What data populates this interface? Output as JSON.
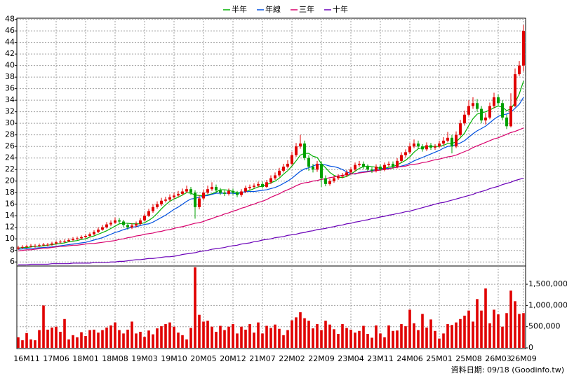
{
  "chart_data": {
    "type": "candlestick",
    "legend": "top",
    "grid": true,
    "up_color": "#e00000",
    "down_color": "#00a000",
    "categories": [
      null,
      null,
      "16M11",
      null,
      null,
      null,
      null,
      null,
      null,
      "17M06",
      null,
      null,
      null,
      null,
      null,
      null,
      "18M01",
      null,
      null,
      null,
      null,
      null,
      null,
      "18M08",
      null,
      null,
      null,
      null,
      null,
      null,
      "19M03",
      null,
      null,
      null,
      null,
      null,
      null,
      "19M10",
      null,
      null,
      null,
      null,
      null,
      null,
      "20M05",
      null,
      null,
      null,
      null,
      null,
      null,
      "20M12",
      null,
      null,
      null,
      null,
      null,
      null,
      "21M07",
      null,
      null,
      null,
      null,
      null,
      null,
      "22M02",
      null,
      null,
      null,
      null,
      null,
      null,
      "22M09",
      null,
      null,
      null,
      null,
      null,
      null,
      "23M04",
      null,
      null,
      null,
      null,
      null,
      null,
      "23M11",
      null,
      null,
      null,
      null,
      null,
      null,
      "24M06",
      null,
      null,
      null,
      null,
      null,
      null,
      "25M01",
      null,
      null,
      null,
      null,
      null,
      null,
      "25M08",
      null,
      null,
      null,
      null,
      null,
      null,
      "26M03",
      null,
      null,
      null,
      null,
      null,
      "26M09"
    ],
    "open": [
      8.3,
      8.5,
      8.6,
      8.7,
      8.8,
      8.8,
      8.9,
      9.0,
      9.0,
      9.2,
      9.4,
      9.5,
      9.6,
      9.8,
      10.0,
      10.1,
      10.3,
      10.5,
      10.8,
      11.2,
      11.6,
      12.0,
      12.5,
      12.8,
      13.2,
      13.0,
      12.4,
      12.0,
      12.3,
      12.6,
      13.2,
      14.0,
      14.8,
      15.5,
      16.0,
      16.6,
      16.8,
      17.2,
      17.5,
      17.8,
      18.2,
      18.6,
      18.0,
      15.5,
      17.0,
      18.0,
      18.6,
      19.0,
      18.4,
      18.0,
      17.8,
      18.3,
      18.0,
      17.6,
      18.2,
      18.8,
      19.0,
      19.2,
      19.5,
      19.0,
      19.8,
      20.5,
      21.0,
      21.8,
      22.5,
      23.0,
      24.5,
      26.0,
      26.5,
      24.0,
      22.5,
      22.0,
      23.0,
      20.5,
      19.5,
      20.0,
      20.5,
      20.8,
      21.0,
      21.5,
      22.0,
      22.8,
      23.0,
      22.5,
      22.0,
      21.8,
      22.5,
      22.0,
      22.8,
      23.0,
      22.5,
      23.5,
      24.5,
      25.0,
      26.0,
      26.5,
      26.0,
      25.5,
      26.2,
      25.8,
      26.0,
      26.5,
      27.0,
      27.5,
      26.0,
      28.0,
      30.0,
      31.5,
      33.0,
      33.5,
      32.5,
      30.5,
      31.0,
      33.0,
      34.5,
      33.5,
      31.0,
      29.5,
      33.0,
      38.5,
      40.0
    ],
    "high": [
      8.8,
      8.9,
      9.0,
      9.1,
      9.1,
      9.2,
      9.3,
      9.3,
      9.5,
      9.7,
      9.8,
      9.9,
      10.1,
      10.3,
      10.4,
      10.6,
      10.8,
      11.1,
      11.5,
      12.0,
      12.4,
      12.9,
      13.2,
      13.7,
      13.6,
      13.3,
      12.7,
      12.7,
      13.0,
      13.6,
      14.4,
      15.2,
      16.0,
      16.5,
      17.1,
      17.3,
      17.7,
      18.0,
      18.3,
      18.7,
      19.2,
      19.0,
      18.4,
      17.5,
      18.5,
      19.2,
      19.8,
      19.4,
      18.8,
      18.4,
      18.7,
      18.7,
      18.3,
      18.6,
      19.2,
      19.4,
      19.6,
      19.9,
      19.9,
      20.2,
      21.0,
      21.5,
      22.3,
      23.0,
      23.6,
      25.1,
      26.6,
      28.0,
      27.0,
      24.5,
      23.0,
      23.5,
      23.4,
      21.0,
      20.4,
      20.9,
      21.2,
      21.4,
      21.9,
      22.4,
      23.2,
      23.5,
      23.4,
      22.9,
      22.4,
      22.9,
      22.9,
      23.2,
      23.4,
      23.4,
      24.0,
      25.0,
      25.5,
      26.6,
      27.2,
      27.0,
      26.4,
      26.7,
      26.6,
      26.4,
      27.0,
      27.6,
      28.5,
      28.0,
      28.6,
      30.6,
      32.2,
      34.0,
      34.5,
      34.2,
      33.0,
      31.8,
      33.6,
      35.3,
      35.0,
      34.0,
      31.5,
      35.2,
      39.5,
      40.8,
      47.0
    ],
    "low": [
      8.1,
      8.3,
      8.4,
      8.5,
      8.5,
      8.6,
      8.7,
      8.7,
      8.8,
      9.0,
      9.2,
      9.3,
      9.4,
      9.6,
      9.8,
      9.9,
      10.1,
      10.3,
      10.6,
      11.0,
      11.4,
      11.8,
      12.2,
      12.6,
      12.7,
      12.0,
      11.6,
      11.7,
      12.0,
      12.4,
      13.0,
      13.8,
      14.5,
      15.2,
      15.7,
      16.3,
      16.5,
      16.9,
      17.2,
      17.5,
      17.9,
      17.6,
      13.5,
      15.1,
      16.7,
      17.7,
      18.3,
      18.0,
      17.6,
      17.4,
      17.5,
      17.6,
      17.2,
      17.3,
      17.9,
      18.5,
      18.7,
      18.9,
      18.7,
      18.8,
      19.5,
      20.2,
      20.7,
      21.5,
      22.2,
      22.7,
      24.2,
      25.6,
      23.6,
      21.8,
      21.5,
      21.6,
      19.0,
      19.1,
      19.2,
      19.7,
      20.2,
      20.5,
      20.7,
      21.2,
      21.7,
      22.5,
      22.1,
      21.7,
      21.4,
      21.5,
      21.7,
      21.7,
      22.5,
      22.1,
      22.2,
      23.2,
      24.1,
      24.7,
      25.7,
      25.6,
      25.1,
      25.2,
      25.4,
      25.4,
      25.7,
      26.2,
      26.7,
      24.8,
      25.7,
      27.7,
      29.6,
      31.2,
      32.5,
      32.0,
      30.0,
      29.8,
      30.7,
      32.6,
      33.0,
      30.5,
      29.0,
      29.3,
      32.8,
      38.2,
      39.0
    ],
    "close": [
      8.5,
      8.6,
      8.7,
      8.8,
      8.8,
      8.9,
      9.0,
      9.0,
      9.2,
      9.4,
      9.5,
      9.6,
      9.8,
      10.0,
      10.1,
      10.3,
      10.5,
      10.8,
      11.2,
      11.6,
      12.0,
      12.5,
      12.8,
      13.2,
      13.0,
      12.4,
      12.0,
      12.3,
      12.6,
      13.2,
      14.0,
      14.8,
      15.5,
      16.0,
      16.6,
      16.8,
      17.2,
      17.5,
      17.8,
      18.2,
      18.6,
      18.0,
      15.5,
      17.0,
      18.0,
      18.6,
      19.0,
      18.4,
      18.0,
      17.8,
      18.3,
      18.0,
      17.6,
      18.2,
      18.8,
      19.0,
      19.2,
      19.5,
      19.0,
      19.8,
      20.5,
      21.0,
      21.8,
      22.5,
      23.0,
      24.5,
      26.0,
      26.5,
      24.0,
      22.5,
      22.0,
      23.0,
      20.5,
      19.5,
      20.0,
      20.5,
      20.8,
      21.0,
      21.5,
      22.0,
      22.8,
      23.0,
      22.5,
      22.0,
      21.8,
      22.5,
      22.0,
      22.8,
      23.0,
      22.5,
      23.5,
      24.5,
      25.0,
      26.0,
      26.5,
      26.0,
      25.5,
      26.2,
      25.8,
      26.0,
      26.5,
      27.0,
      27.5,
      26.0,
      28.0,
      30.0,
      31.5,
      33.0,
      33.5,
      32.5,
      30.5,
      31.0,
      33.0,
      34.5,
      33.5,
      31.0,
      29.5,
      33.0,
      38.5,
      40.0,
      46.0
    ],
    "ylim": [
      5.3,
      48.2
    ],
    "yticks": [
      6,
      8,
      10,
      12,
      14,
      16,
      18,
      20,
      22,
      24,
      26,
      28,
      30,
      32,
      34,
      36,
      38,
      40,
      42,
      44,
      46,
      48
    ],
    "series": [
      {
        "name": "半年",
        "color": "#00b000",
        "values": [
          8.4,
          8.5,
          8.5,
          8.6,
          8.7,
          8.7,
          8.8,
          8.9,
          9.0,
          9.1,
          9.2,
          9.3,
          9.5,
          9.6,
          9.7,
          9.9,
          10.0,
          10.3,
          10.5,
          10.8,
          11.1,
          11.4,
          11.8,
          12.2,
          12.6,
          12.7,
          12.7,
          12.6,
          12.6,
          12.6,
          12.8,
          13.2,
          13.7,
          14.4,
          15.2,
          15.9,
          16.5,
          16.9,
          17.2,
          17.6,
          18.0,
          17.9,
          17.6,
          17.5,
          17.5,
          17.6,
          17.8,
          18.1,
          18.5,
          18.5,
          18.4,
          18.2,
          18.0,
          18.0,
          18.2,
          18.4,
          18.7,
          19.0,
          19.1,
          19.4,
          19.7,
          20.0,
          20.5,
          21.2,
          21.8,
          22.6,
          23.5,
          24.5,
          24.8,
          24.8,
          24.3,
          24.1,
          23.0,
          22.3,
          21.5,
          21.0,
          20.7,
          20.6,
          20.8,
          21.2,
          21.7,
          22.2,
          22.5,
          22.6,
          22.5,
          22.4,
          22.2,
          22.2,
          22.4,
          22.5,
          22.8,
          23.2,
          23.6,
          24.2,
          25.0,
          25.6,
          25.8,
          26.0,
          26.0,
          26.0,
          26.0,
          26.2,
          26.5,
          26.5,
          26.8,
          27.5,
          28.3,
          29.6,
          30.8,
          31.6,
          31.8,
          32.0,
          32.3,
          32.7,
          33.0,
          32.8,
          32.2,
          32.5,
          33.6,
          35.1,
          37.3
        ]
      },
      {
        "name": "年線",
        "color": "#0050e0",
        "values": [
          8.2,
          8.25,
          8.3,
          8.35,
          8.4,
          8.45,
          8.5,
          8.55,
          8.6,
          8.7,
          8.8,
          8.9,
          9.0,
          9.1,
          9.2,
          9.3,
          9.4,
          9.6,
          9.8,
          10.0,
          10.2,
          10.5,
          10.8,
          11.1,
          11.3,
          11.6,
          11.8,
          12.0,
          12.1,
          12.3,
          12.5,
          12.6,
          12.9,
          13.3,
          13.7,
          14.1,
          14.6,
          15.1,
          15.5,
          16.0,
          16.5,
          16.9,
          17.0,
          17.2,
          17.4,
          17.5,
          17.7,
          17.9,
          17.9,
          17.9,
          17.9,
          17.9,
          17.8,
          18.0,
          18.2,
          18.2,
          18.2,
          18.3,
          18.4,
          18.5,
          18.7,
          18.9,
          19.2,
          19.6,
          20.0,
          20.5,
          21.1,
          21.7,
          22.1,
          22.3,
          22.6,
          22.9,
          22.9,
          22.8,
          22.6,
          22.5,
          22.3,
          22.0,
          21.6,
          21.3,
          21.2,
          21.5,
          21.6,
          21.7,
          21.8,
          22.0,
          22.1,
          22.2,
          22.2,
          22.3,
          22.4,
          22.6,
          22.8,
          23.1,
          23.5,
          23.8,
          24.1,
          24.4,
          24.7,
          25.0,
          25.3,
          25.7,
          26.0,
          26.1,
          26.3,
          26.6,
          27.0,
          27.6,
          28.2,
          28.7,
          29.1,
          29.5,
          30.1,
          30.7,
          31.2,
          31.5,
          31.6,
          31.9,
          32.6,
          33.3,
          34.5
        ]
      },
      {
        "name": "三年",
        "color": "#d8006c",
        "values": [
          7.9,
          8.0,
          8.1,
          8.1,
          8.2,
          8.3,
          8.4,
          8.4,
          8.5,
          8.6,
          8.7,
          8.7,
          8.8,
          8.9,
          8.9,
          9.0,
          9.1,
          9.2,
          9.2,
          9.3,
          9.4,
          9.5,
          9.6,
          9.7,
          9.9,
          10.0,
          10.2,
          10.3,
          10.5,
          10.6,
          10.8,
          10.9,
          11.0,
          11.2,
          11.3,
          11.5,
          11.6,
          11.8,
          12.0,
          12.1,
          12.3,
          12.5,
          12.7,
          12.8,
          13.0,
          13.3,
          13.5,
          13.8,
          14.0,
          14.3,
          14.5,
          14.8,
          15.0,
          15.3,
          15.5,
          15.8,
          16.0,
          16.3,
          16.5,
          16.8,
          17.2,
          17.5,
          17.8,
          18.2,
          18.5,
          18.8,
          19.2,
          19.5,
          19.7,
          19.8,
          20.0,
          20.1,
          20.3,
          20.4,
          20.6,
          20.7,
          20.9,
          21.0,
          21.1,
          21.2,
          21.3,
          21.4,
          21.5,
          21.6,
          21.7,
          21.8,
          21.9,
          22.0,
          22.1,
          22.3,
          22.4,
          22.5,
          22.6,
          22.8,
          22.9,
          23.0,
          23.2,
          23.3,
          23.5,
          23.7,
          23.8,
          24.0,
          24.2,
          24.3,
          24.5,
          24.8,
          25.1,
          25.4,
          25.8,
          26.1,
          26.4,
          26.7,
          27.0,
          27.3,
          27.5,
          27.8,
          28.1,
          28.4,
          28.6,
          28.9,
          29.2
        ]
      },
      {
        "name": "十年",
        "color": "#6a00b8",
        "values": [
          5.5,
          5.5,
          5.5,
          5.6,
          5.6,
          5.6,
          5.6,
          5.6,
          5.7,
          5.7,
          5.7,
          5.7,
          5.7,
          5.8,
          5.8,
          5.8,
          5.8,
          5.8,
          5.9,
          5.9,
          5.9,
          5.9,
          6.0,
          6.0,
          6.1,
          6.1,
          6.2,
          6.3,
          6.4,
          6.4,
          6.5,
          6.6,
          6.6,
          6.7,
          6.8,
          6.9,
          6.9,
          7.0,
          7.1,
          7.3,
          7.4,
          7.5,
          7.6,
          7.8,
          7.9,
          8.0,
          8.2,
          8.3,
          8.4,
          8.5,
          8.7,
          8.8,
          8.9,
          9.1,
          9.2,
          9.3,
          9.5,
          9.6,
          9.8,
          9.9,
          10.0,
          10.2,
          10.3,
          10.4,
          10.6,
          10.7,
          10.8,
          11.0,
          11.1,
          11.3,
          11.4,
          11.6,
          11.7,
          11.8,
          12.0,
          12.1,
          12.3,
          12.4,
          12.6,
          12.7,
          12.9,
          13.0,
          13.2,
          13.3,
          13.5,
          13.6,
          13.8,
          13.9,
          14.1,
          14.2,
          14.4,
          14.5,
          14.7,
          14.8,
          15.0,
          15.2,
          15.4,
          15.6,
          15.8,
          16.0,
          16.2,
          16.3,
          16.5,
          16.7,
          16.9,
          17.1,
          17.3,
          17.5,
          17.7,
          18.0,
          18.2,
          18.4,
          18.7,
          18.9,
          19.1,
          19.4,
          19.6,
          19.8,
          20.1,
          20.3,
          20.5
        ]
      }
    ],
    "volume": {
      "color": "#e00000",
      "ylim": [
        0,
        1930000
      ],
      "yticks": [
        0,
        {
          "value": 500000,
          "label": "500,000"
        },
        {
          "value": 1000000,
          "label": "1,000,000"
        },
        {
          "value": 1500000,
          "label": "1,500,000"
        }
      ],
      "values": [
        250000,
        180000,
        350000,
        200000,
        180000,
        420000,
        1000000,
        430000,
        480000,
        500000,
        380000,
        680000,
        200000,
        300000,
        250000,
        370000,
        280000,
        420000,
        430000,
        360000,
        420000,
        480000,
        530000,
        600000,
        420000,
        340000,
        430000,
        620000,
        340000,
        380000,
        260000,
        410000,
        320000,
        460000,
        510000,
        560000,
        600000,
        500000,
        360000,
        300000,
        200000,
        470000,
        1900000,
        780000,
        620000,
        640000,
        500000,
        380000,
        520000,
        420000,
        500000,
        560000,
        340000,
        500000,
        430000,
        560000,
        360000,
        600000,
        340000,
        520000,
        470000,
        550000,
        450000,
        300000,
        420000,
        650000,
        720000,
        840000,
        700000,
        640000,
        460000,
        560000,
        420000,
        640000,
        550000,
        440000,
        330000,
        560000,
        470000,
        430000,
        360000,
        400000,
        520000,
        330000,
        240000,
        530000,
        340000,
        250000,
        530000,
        400000,
        410000,
        560000,
        510000,
        900000,
        580000,
        420000,
        800000,
        480000,
        670000,
        400000,
        220000,
        340000,
        560000,
        540000,
        600000,
        680000,
        760000,
        880000,
        620000,
        1150000,
        880000,
        1400000,
        580000,
        900000,
        790000,
        500000,
        820000,
        1350000,
        1100000,
        800000,
        820000
      ]
    },
    "footer": "資料日期: 09/18 (Goodinfo.tw)"
  }
}
